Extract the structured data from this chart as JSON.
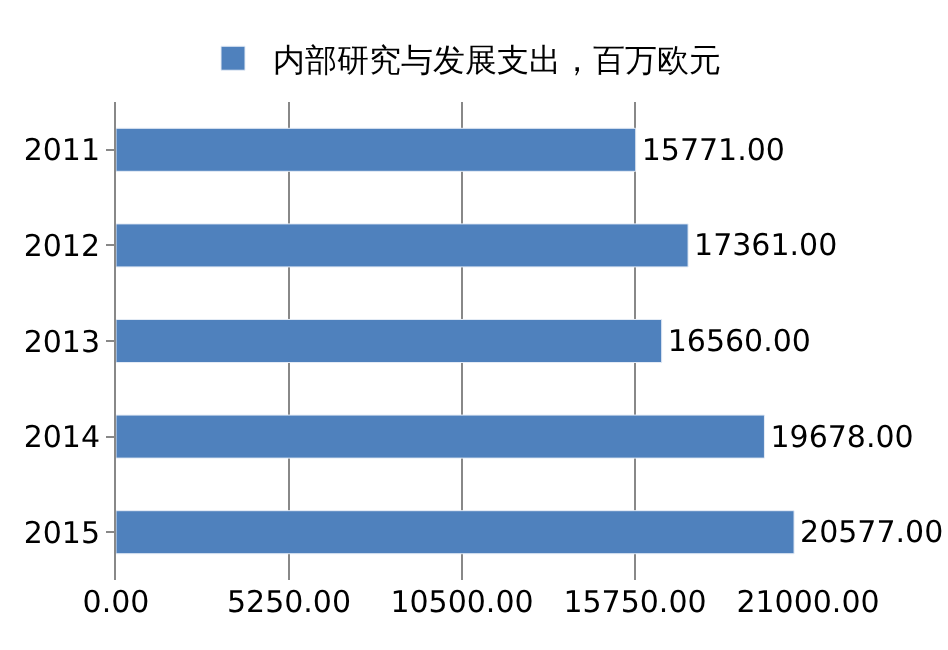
{
  "chart_data": {
    "type": "bar",
    "orientation": "horizontal",
    "categories": [
      "2011",
      "2012",
      "2013",
      "2014",
      "2015"
    ],
    "series": [
      {
        "name": "内部研究与发展支出，百万欧元",
        "color": "#4f81bd",
        "values": [
          15771,
          17361,
          16560,
          19678,
          20577
        ],
        "value_labels": [
          "15771.00",
          "17361.00",
          "16560.00",
          "19678.00",
          "20577.00"
        ]
      }
    ],
    "xlim": [
      0,
      21000
    ],
    "xticks": [
      {
        "value": 0,
        "label": "0.00"
      },
      {
        "value": 5250,
        "label": "5250.00"
      },
      {
        "value": 10500,
        "label": "10500.00"
      },
      {
        "value": 15750,
        "label": "15750.00"
      },
      {
        "value": 21000,
        "label": "21000.00"
      }
    ],
    "grid": "x",
    "legend": "top"
  }
}
